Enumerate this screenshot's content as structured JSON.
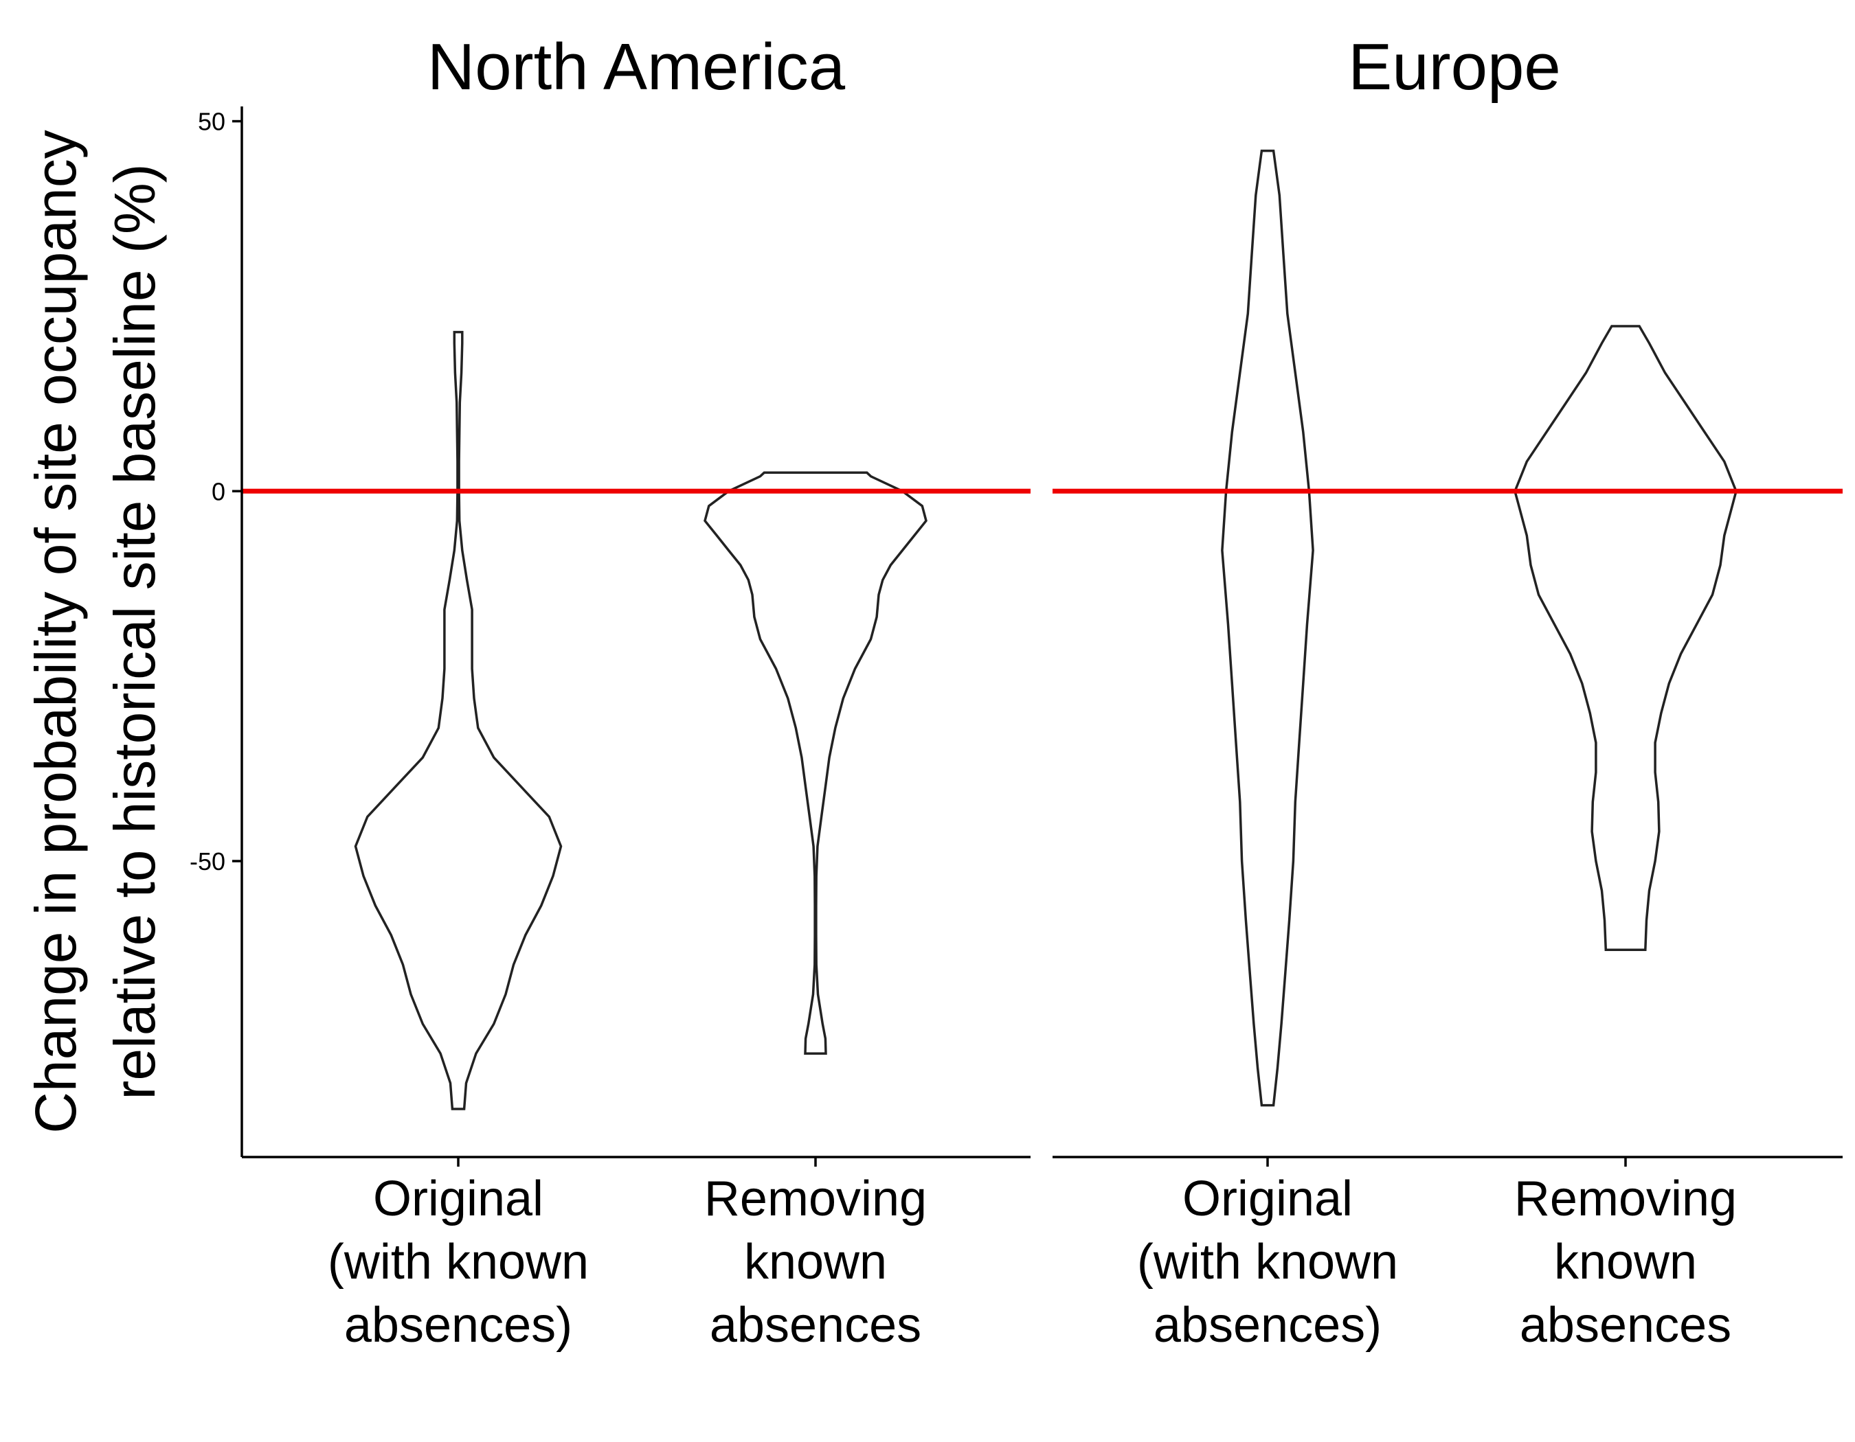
{
  "chart_data": {
    "type": "violin",
    "ylabel": [
      "Change in probability of site occupancy",
      "relative to historical site baseline (%)"
    ],
    "ylim": [
      -90,
      52
    ],
    "y_ticks": [
      50,
      0,
      -50
    ],
    "y_tick_labels": [
      "50",
      "0",
      "-50"
    ],
    "reference_line": {
      "y": 0,
      "color": "#ee0000"
    },
    "categories": [
      [
        "Original",
        "(with known",
        "absences)"
      ],
      [
        "Removing",
        "known",
        "absences"
      ]
    ],
    "panels": [
      {
        "title": "North America",
        "violins": [
          {
            "category": "Original (with known absences)",
            "profile": [
              [
                -83.5,
                1.5
              ],
              [
                -80,
                2
              ],
              [
                -76,
                4.5
              ],
              [
                -72,
                9
              ],
              [
                -68,
                12
              ],
              [
                -64,
                14
              ],
              [
                -60,
                17
              ],
              [
                -56,
                21
              ],
              [
                -52,
                24
              ],
              [
                -48,
                26
              ],
              [
                -44,
                23
              ],
              [
                -40,
                16
              ],
              [
                -36,
                9
              ],
              [
                -32,
                5
              ],
              [
                -28,
                4
              ],
              [
                -24,
                3.5
              ],
              [
                -20,
                3.5
              ],
              [
                -16,
                3.5
              ],
              [
                -12,
                2.2
              ],
              [
                -8,
                1
              ],
              [
                -4,
                0.3
              ],
              [
                0,
                0.2
              ],
              [
                4,
                0.2
              ],
              [
                8,
                0.3
              ],
              [
                12,
                0.4
              ],
              [
                16,
                0.8
              ],
              [
                20,
                1
              ],
              [
                21.5,
                1
              ]
            ]
          },
          {
            "category": "Removing known absences",
            "profile": [
              [
                -76,
                2.6
              ],
              [
                -74,
                2.5
              ],
              [
                -72,
                1.8
              ],
              [
                -70,
                1.2
              ],
              [
                -68,
                0.6
              ],
              [
                -64,
                0.2
              ],
              [
                -60,
                0.15
              ],
              [
                -56,
                0.15
              ],
              [
                -52,
                0.2
              ],
              [
                -48,
                0.5
              ],
              [
                -44,
                1.5
              ],
              [
                -40,
                2.5
              ],
              [
                -36,
                3.5
              ],
              [
                -32,
                5
              ],
              [
                -28,
                7
              ],
              [
                -24,
                10
              ],
              [
                -20,
                14
              ],
              [
                -17,
                15.5
              ],
              [
                -14,
                16
              ],
              [
                -12,
                17
              ],
              [
                -10,
                19
              ],
              [
                -8,
                22
              ],
              [
                -6,
                25
              ],
              [
                -4,
                28
              ],
              [
                -2,
                27
              ],
              [
                0,
                22
              ],
              [
                2,
                14
              ],
              [
                2.5,
                13
              ]
            ]
          }
        ]
      },
      {
        "title": "Europe",
        "violins": [
          {
            "category": "Original (with known absences)",
            "profile": [
              [
                -83,
                1.5
              ],
              [
                -78,
                2.5
              ],
              [
                -72,
                3.5
              ],
              [
                -65,
                4.5
              ],
              [
                -58,
                5.5
              ],
              [
                -50,
                6.5
              ],
              [
                -42,
                7
              ],
              [
                -34,
                8
              ],
              [
                -26,
                9
              ],
              [
                -18,
                10
              ],
              [
                -8,
                11.5
              ],
              [
                0,
                10.5
              ],
              [
                8,
                9
              ],
              [
                16,
                7
              ],
              [
                24,
                5
              ],
              [
                32,
                4
              ],
              [
                40,
                3
              ],
              [
                44,
                2
              ],
              [
                46,
                1.5
              ]
            ]
          },
          {
            "category": "Removing known absences",
            "profile": [
              [
                -62,
                5
              ],
              [
                -58,
                5.3
              ],
              [
                -54,
                6
              ],
              [
                -50,
                7.5
              ],
              [
                -46,
                8.5
              ],
              [
                -42,
                8.3
              ],
              [
                -38,
                7.5
              ],
              [
                -34,
                7.5
              ],
              [
                -30,
                9
              ],
              [
                -26,
                11
              ],
              [
                -22,
                14
              ],
              [
                -18,
                18
              ],
              [
                -14,
                22
              ],
              [
                -10,
                24
              ],
              [
                -6,
                25
              ],
              [
                -2,
                27
              ],
              [
                0,
                28
              ],
              [
                4,
                25
              ],
              [
                8,
                20
              ],
              [
                12,
                15
              ],
              [
                16,
                10
              ],
              [
                20,
                6
              ],
              [
                22.3,
                3.5
              ]
            ]
          }
        ]
      }
    ],
    "legend": "none",
    "grid": false
  }
}
